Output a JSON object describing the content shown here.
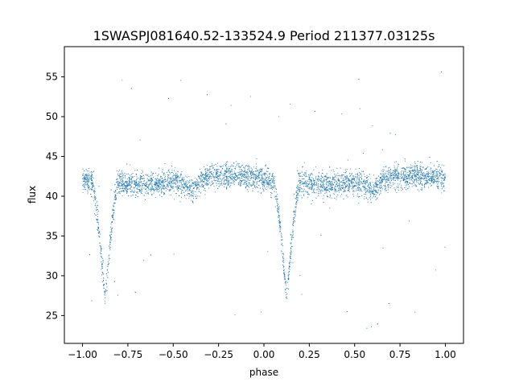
{
  "chart_data": {
    "type": "scatter",
    "title": "1SWASPJ081640.52-133524.9 Period 211377.03125s",
    "xlabel": "phase",
    "ylabel": "flux",
    "xlim": [
      -1.1,
      1.1
    ],
    "ylim": [
      21.5,
      58.8
    ],
    "xticks": [
      -1.0,
      -0.75,
      -0.5,
      -0.25,
      0.0,
      0.25,
      0.5,
      0.75,
      1.0
    ],
    "xtick_labels": [
      "−1.00",
      "−0.75",
      "−0.50",
      "−0.25",
      "0.00",
      "0.25",
      "0.50",
      "0.75",
      "1.00"
    ],
    "yticks": [
      25,
      30,
      35,
      40,
      45,
      50,
      55
    ],
    "ytick_labels": [
      "25",
      "30",
      "35",
      "40",
      "45",
      "50",
      "55"
    ],
    "grid": false,
    "marker_color": "#1f77b4",
    "series": [
      {
        "light_curve": {
          "baseline_flux": 42.0,
          "primary_eclipse_phase": 0.125,
          "primary_eclipse_depth_min": 27.0,
          "eclipse_half_width": 0.065,
          "secondary_dip_phase": -0.4,
          "secondary_dip_flux": 40.6,
          "pre_eclipse_flux": 40.8
        },
        "approximate_points": [
          {
            "x": -1.0,
            "y": 40.8
          },
          {
            "x": -0.95,
            "y": 40.5
          },
          {
            "x": -0.9,
            "y": 36.0
          },
          {
            "x": -0.875,
            "y": 27.0
          },
          {
            "x": -0.85,
            "y": 35.0
          },
          {
            "x": -0.8,
            "y": 41.0
          },
          {
            "x": -0.7,
            "y": 42.0
          },
          {
            "x": -0.6,
            "y": 42.3
          },
          {
            "x": -0.5,
            "y": 41.8
          },
          {
            "x": -0.4,
            "y": 40.6
          },
          {
            "x": -0.3,
            "y": 42.0
          },
          {
            "x": -0.2,
            "y": 42.5
          },
          {
            "x": -0.1,
            "y": 41.6
          },
          {
            "x": 0.0,
            "y": 40.8
          },
          {
            "x": 0.05,
            "y": 40.3
          },
          {
            "x": 0.1,
            "y": 36.0
          },
          {
            "x": 0.125,
            "y": 27.0
          },
          {
            "x": 0.15,
            "y": 35.0
          },
          {
            "x": 0.2,
            "y": 41.0
          },
          {
            "x": 0.3,
            "y": 42.0
          },
          {
            "x": 0.4,
            "y": 42.3
          },
          {
            "x": 0.5,
            "y": 41.8
          },
          {
            "x": 0.6,
            "y": 40.6
          },
          {
            "x": 0.7,
            "y": 42.0
          },
          {
            "x": 0.8,
            "y": 42.5
          },
          {
            "x": 0.9,
            "y": 41.6
          },
          {
            "x": 1.0,
            "y": 40.9
          }
        ]
      }
    ]
  }
}
